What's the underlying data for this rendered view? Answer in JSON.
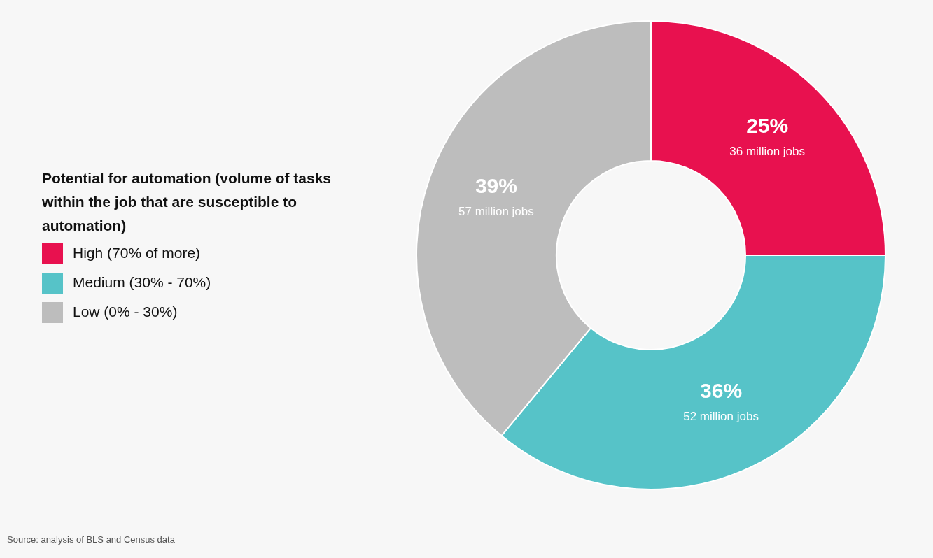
{
  "chart_data": {
    "type": "donut",
    "legend_title": "Potential for automation (volume of tasks within the job that are susceptible to automation)",
    "categories": [
      "High (70% of more)",
      "Medium (30% - 70%)",
      "Low (0% - 30%)"
    ],
    "values": [
      25,
      36,
      39
    ],
    "colors": [
      "#e8114f",
      "#56c3c8",
      "#bdbdbd"
    ],
    "value_labels": [
      "25%",
      "36%",
      "39%"
    ],
    "annotations": [
      "36 million jobs",
      "52 million jobs",
      "57 million jobs",
      "Source: analysis of BLS and Census data"
    ],
    "legend": "left"
  }
}
